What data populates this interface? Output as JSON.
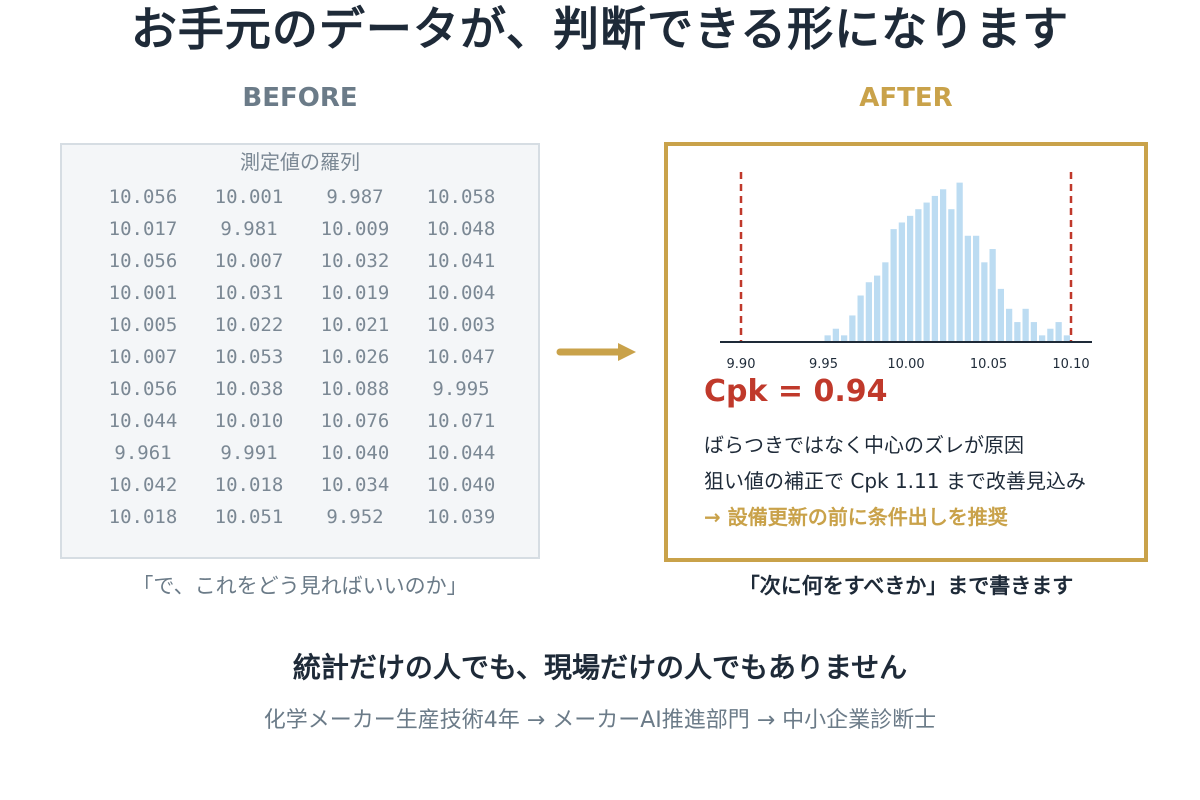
{
  "headline": "お手元のデータが、判断できる形になります",
  "before": {
    "label": "BEFORE",
    "panel_title": "測定値の羅列",
    "values": [
      [
        "10.056",
        "10.001",
        "9.987",
        "10.058"
      ],
      [
        "10.017",
        "9.981",
        "10.009",
        "10.048"
      ],
      [
        "10.056",
        "10.007",
        "10.032",
        "10.041"
      ],
      [
        "10.001",
        "10.031",
        "10.019",
        "10.004"
      ],
      [
        "10.005",
        "10.022",
        "10.021",
        "10.003"
      ],
      [
        "10.007",
        "10.053",
        "10.026",
        "10.047"
      ],
      [
        "10.056",
        "10.038",
        "10.088",
        "9.995"
      ],
      [
        "10.044",
        "10.010",
        "10.076",
        "10.071"
      ],
      [
        "9.961",
        "9.991",
        "10.040",
        "10.044"
      ],
      [
        "10.042",
        "10.018",
        "10.034",
        "10.040"
      ],
      [
        "10.018",
        "10.051",
        "9.952",
        "10.039"
      ]
    ],
    "caption": "「で、これをどう見ればいいのか」"
  },
  "arrow_icon": "right-arrow-icon",
  "after": {
    "label": "AFTER",
    "cpk_text": "Cpk = 0.94",
    "note1": "ばらつきではなく中心のズレが原因",
    "note2": "狙い値の補正で Cpk 1.11 まで改善見込み",
    "note3": "→ 設備更新の前に条件出しを推奨",
    "caption": "「次に何をすべきか」まで書きます"
  },
  "chart_data": {
    "type": "bar",
    "subtype": "histogram",
    "bin_width": 0.005,
    "bin_starts": [
      9.95,
      9.955,
      9.96,
      9.965,
      9.97,
      9.975,
      9.98,
      9.985,
      9.99,
      9.995,
      10.0,
      10.005,
      10.01,
      10.015,
      10.02,
      10.025,
      10.03,
      10.035,
      10.04,
      10.045,
      10.05,
      10.055,
      10.06,
      10.065,
      10.07,
      10.075,
      10.08,
      10.085,
      10.09,
      10.095
    ],
    "values": [
      0.5,
      1,
      0.5,
      2,
      3.5,
      4.5,
      5,
      6,
      8.5,
      9,
      9.5,
      10,
      10.5,
      11,
      11.5,
      10,
      12,
      8,
      8,
      6,
      7,
      4,
      2.5,
      1.5,
      2.5,
      1.5,
      0.5,
      1,
      1.5,
      0.5
    ],
    "spec_limits": [
      9.9,
      10.1
    ],
    "xlim": [
      9.9,
      10.1
    ],
    "x_ticks": [
      "9.90",
      "9.95",
      "10.00",
      "10.05",
      "10.10"
    ],
    "x_tick_values": [
      9.9,
      9.95,
      10.0,
      10.05,
      10.1
    ],
    "bar_color": "#bcdcf2",
    "limit_color": "#c0392b"
  },
  "tagline": "統計だけの人でも、現場だけの人でもありません",
  "career": "化学メーカー生産技術4年 → メーカーAI推進部門 → 中小企業診断士",
  "colors": {
    "accent_gold": "#c9a24a",
    "navy": "#1e2a38",
    "gray": "#6b7b88",
    "red": "#c0392b"
  }
}
